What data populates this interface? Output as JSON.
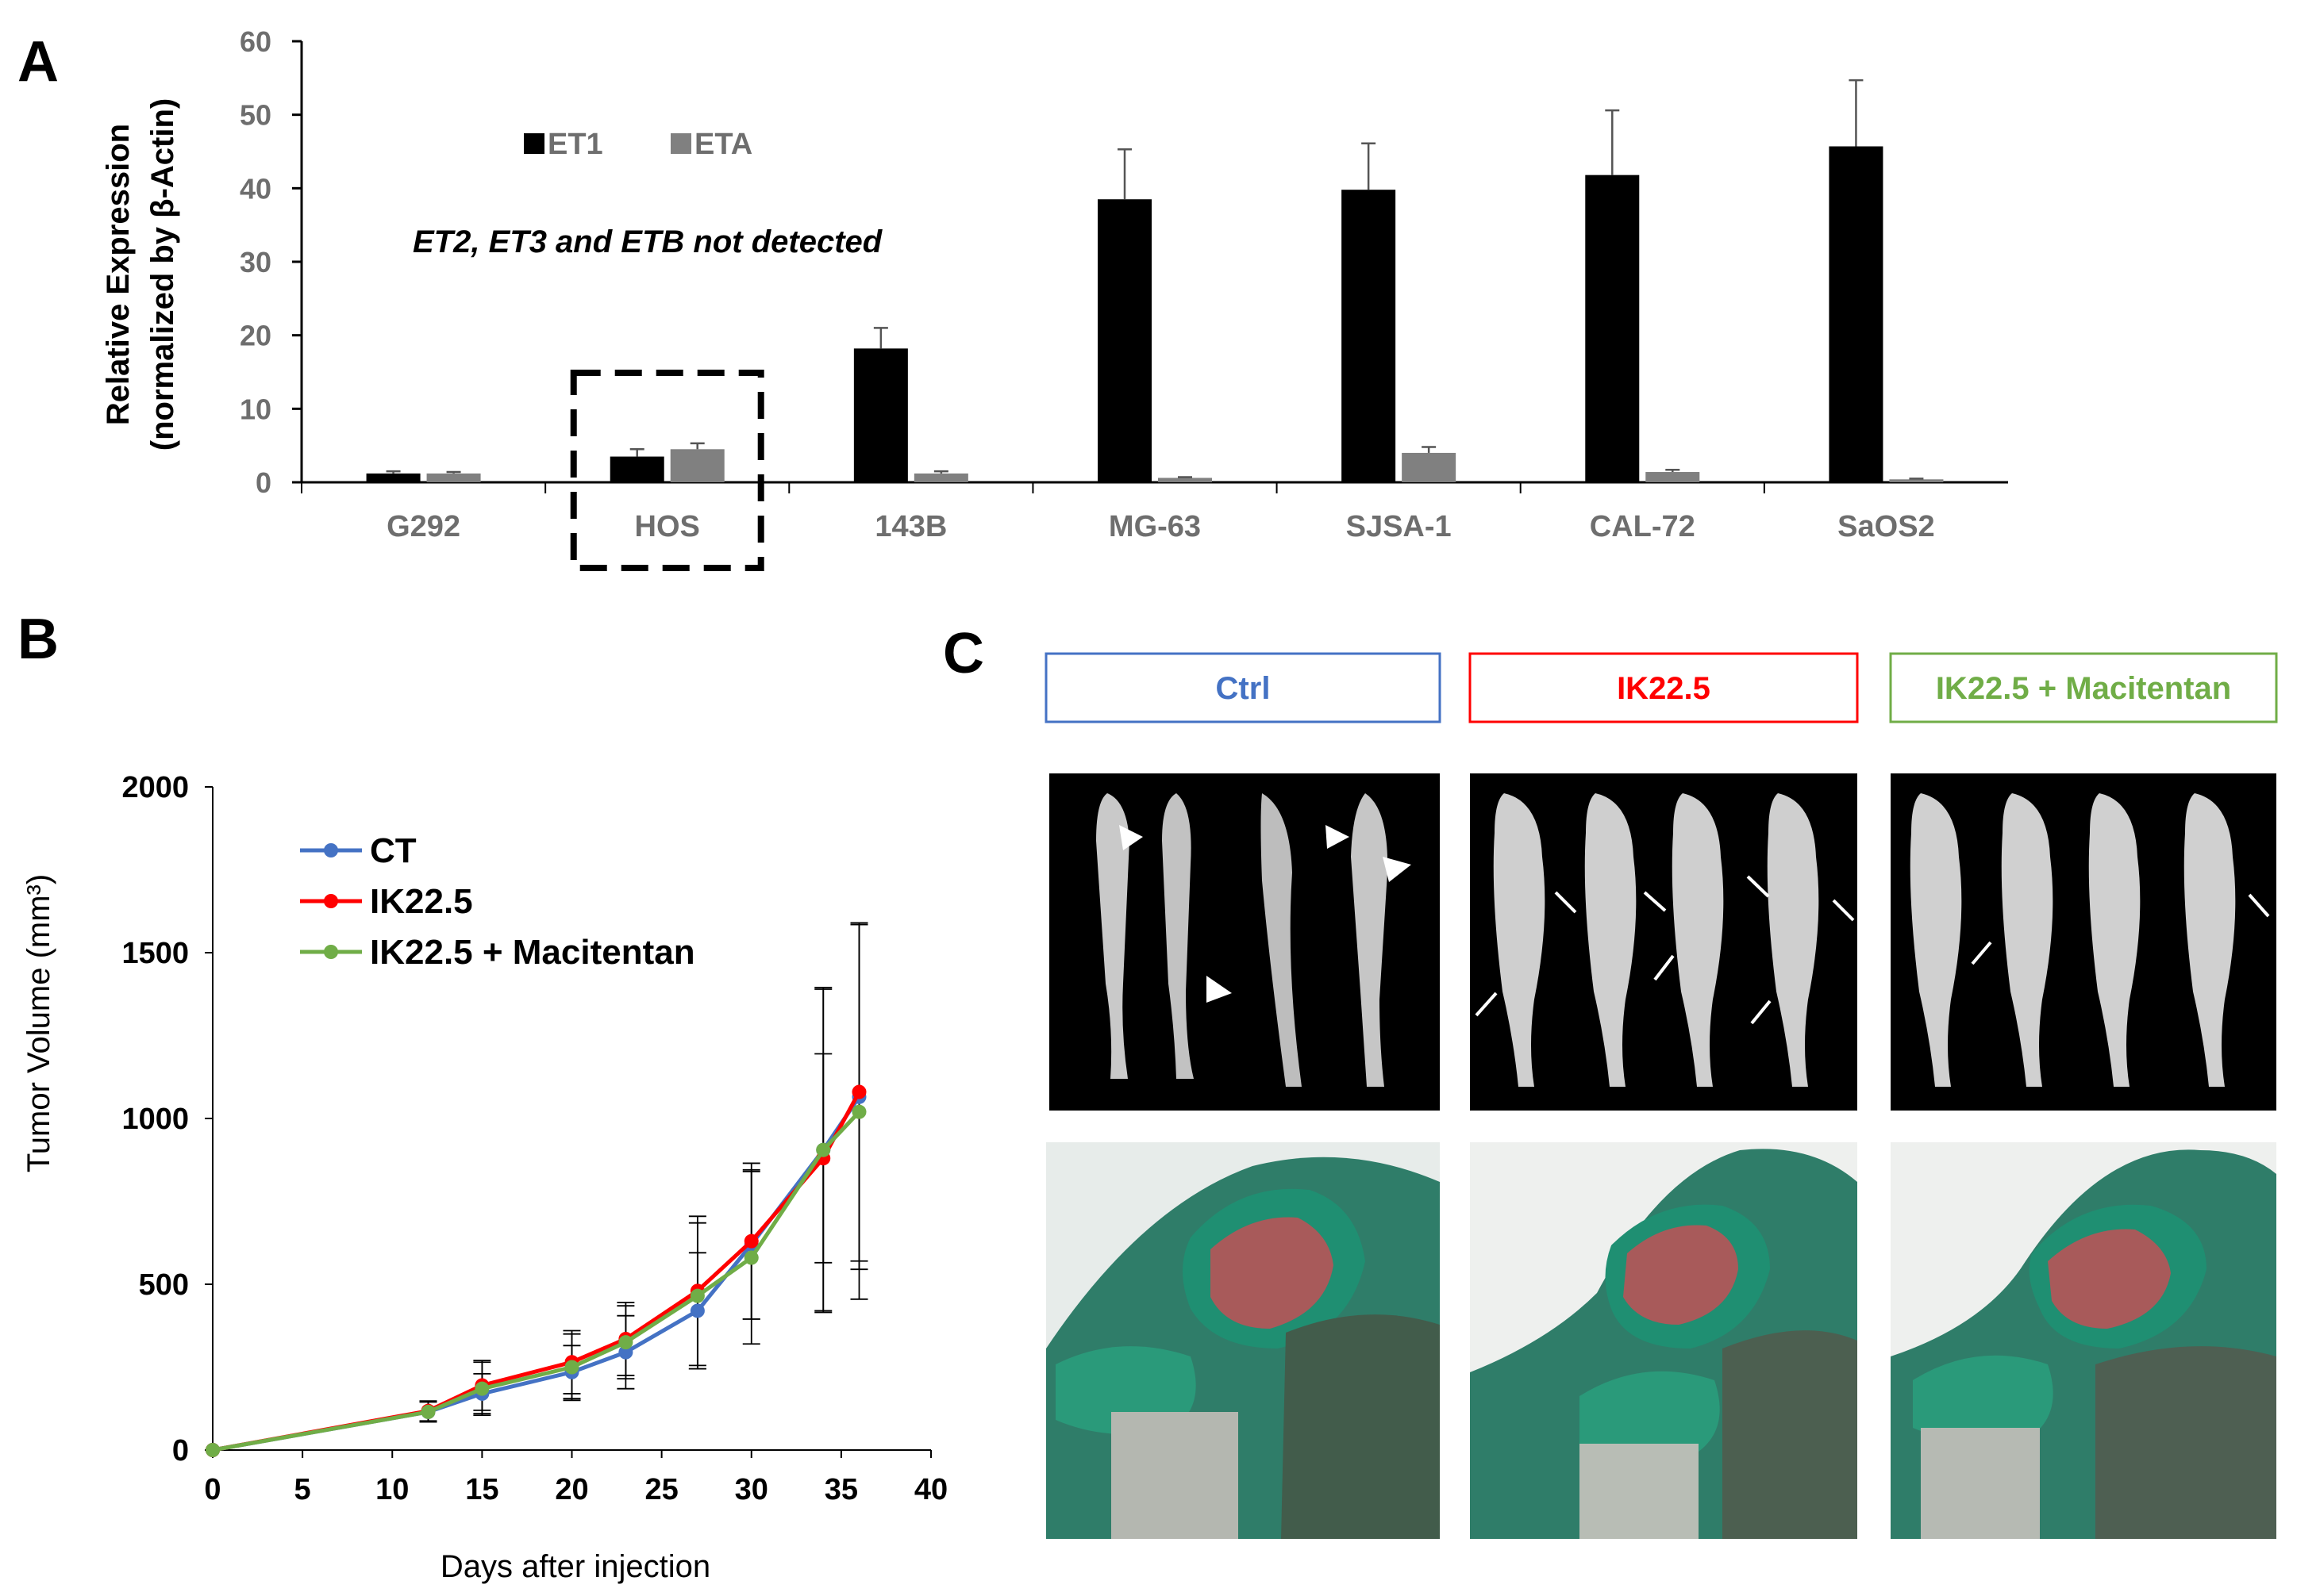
{
  "panel_labels": {
    "a": "A",
    "b": "B",
    "c": "C"
  },
  "chart_data": [
    {
      "type": "bar",
      "panel": "A",
      "title": "",
      "ylabel_line1": "Relative Expression",
      "ylabel_line2": "(normalized by β-Actin)",
      "ylim": [
        0,
        60
      ],
      "yticks": [
        0,
        10,
        20,
        30,
        40,
        50,
        60
      ],
      "categories": [
        "G292",
        "HOS",
        "143B",
        "MG-63",
        "SJSA-1",
        "CAL-72",
        "SaOS2"
      ],
      "highlighted_category": "HOS",
      "series": [
        {
          "name": "ET1",
          "color": "#000000",
          "values": [
            1.2,
            3.5,
            18.2,
            38.5,
            39.8,
            41.8,
            45.7
          ],
          "errors": [
            0.3,
            1.0,
            2.8,
            6.8,
            6.3,
            8.8,
            9.0
          ]
        },
        {
          "name": "ETA",
          "color": "#808080",
          "values": [
            1.2,
            4.5,
            1.2,
            0.6,
            4.0,
            1.4,
            0.4
          ],
          "errors": [
            0.2,
            0.8,
            0.3,
            0.1,
            0.8,
            0.3,
            0.1
          ]
        }
      ],
      "annotation": "ET2, ET3 and ETB not detected"
    },
    {
      "type": "line",
      "panel": "B",
      "xlabel": "Days after injection",
      "ylabel": "Tumor Volume (mm³)",
      "xlim": [
        0,
        40
      ],
      "ylim": [
        0,
        2000
      ],
      "xticks": [
        0,
        5,
        10,
        15,
        20,
        25,
        30,
        35,
        40
      ],
      "yticks": [
        0,
        500,
        1000,
        1500,
        2000
      ],
      "x": [
        0,
        12,
        15,
        20,
        23,
        27,
        30,
        34,
        36
      ],
      "series": [
        {
          "name": "CT",
          "color": "#4472c4",
          "values": [
            0,
            115,
            170,
            235,
            295,
            420,
            620,
            905,
            1065
          ],
          "errors": [
            0,
            30,
            60,
            80,
            110,
            175,
            225,
            490,
            520
          ]
        },
        {
          "name": "IK22.5",
          "color": "#ff0000",
          "values": [
            0,
            118,
            195,
            265,
            335,
            480,
            630,
            880,
            1080
          ],
          "errors": [
            0,
            30,
            75,
            95,
            110,
            225,
            235,
            315,
            510
          ]
        },
        {
          "name": "IK22.5 + Macitentan",
          "color": "#70ad47",
          "values": [
            0,
            115,
            185,
            250,
            325,
            465,
            580,
            905,
            1020
          ],
          "errors": [
            0,
            30,
            80,
            100,
            110,
            220,
            260,
            485,
            565
          ]
        }
      ]
    }
  ],
  "panel_c": {
    "groups": [
      {
        "label": "Ctrl",
        "color": "#4472c4"
      },
      {
        "label": "IK22.5",
        "color": "#ff0000"
      },
      {
        "label": "IK22.5 + Macitentan",
        "color": "#70ad47"
      }
    ]
  }
}
